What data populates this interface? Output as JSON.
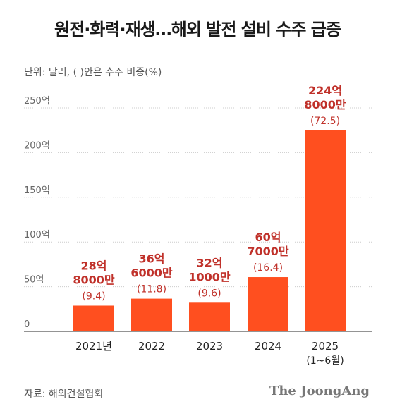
{
  "title": "원전·화력·재생…해외 발전 설비 수주 급증",
  "unit_note": "단위: 달러, (  )안은 수주 비중(%)",
  "source": "자료: 해외건설협회",
  "brand": "The JoongAng",
  "colors": {
    "bar": "#ff4f1f",
    "value_label": "#c0312a",
    "share_label": "#c0312a",
    "grid": "#cccccc"
  },
  "chart_data": {
    "type": "bar",
    "title": "원전·화력·재생…해외 발전 설비 수주 급증",
    "ylabel": "",
    "xlabel": "",
    "ylim": [
      0,
      250
    ],
    "grid": true,
    "categories": [
      "2021년",
      "2022",
      "2023",
      "2024",
      "2025"
    ],
    "category_sublabels": [
      "",
      "",
      "",
      "",
      "(1~6월)"
    ],
    "yticks": [
      0,
      50,
      100,
      150,
      200,
      250
    ],
    "ytick_labels": [
      "0",
      "50억",
      "100억",
      "150억",
      "200억",
      "250억"
    ],
    "values": [
      28.8,
      36.6,
      32.1,
      60.7,
      224.8
    ],
    "value_labels": [
      [
        "28억",
        "8000만"
      ],
      [
        "36억",
        "6000만"
      ],
      [
        "32억",
        "1000만"
      ],
      [
        "60억",
        "7000만"
      ],
      [
        "224억",
        "8000만"
      ]
    ],
    "share_labels": [
      "(9.4)",
      "(11.8)",
      "(9.6)",
      "(16.4)",
      "(72.5)"
    ]
  }
}
